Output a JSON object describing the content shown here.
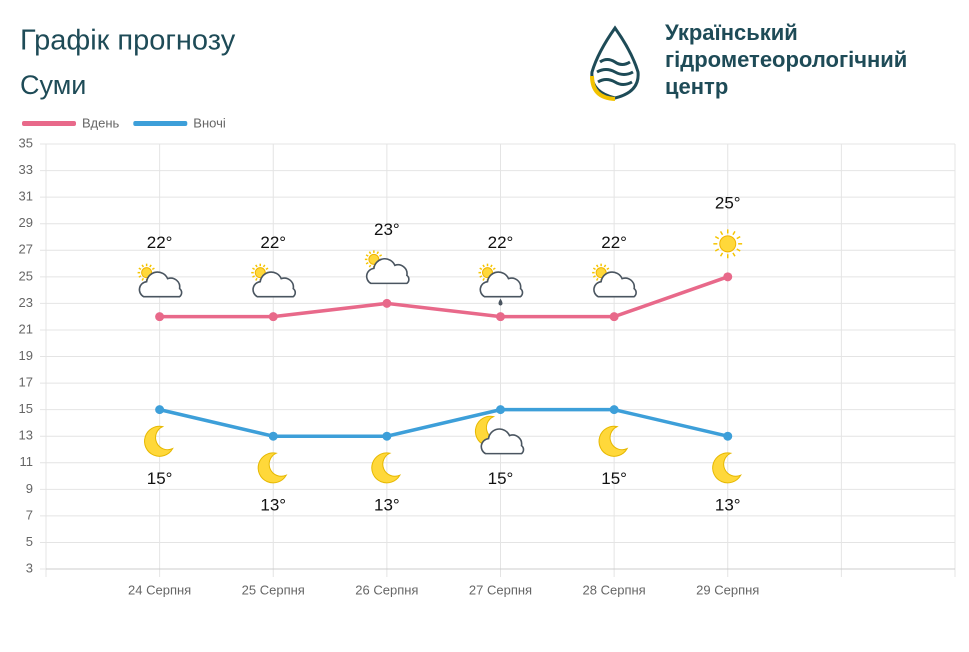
{
  "header": {
    "title": "Графік прогнозу",
    "city": "Суми",
    "logo_lines": [
      "Український",
      "гідрометеорологічний",
      "центр"
    ]
  },
  "chart_data": {
    "type": "line",
    "categories": [
      "24 Серпня",
      "25 Серпня",
      "26 Серпня",
      "27 Серпня",
      "28 Серпня",
      "29 Серпня"
    ],
    "series": [
      {
        "name": "Вдень",
        "color": "#e8698a",
        "values": [
          22,
          22,
          23,
          22,
          22,
          25
        ],
        "value_labels": [
          "22°",
          "22°",
          "23°",
          "22°",
          "22°",
          "25°"
        ]
      },
      {
        "name": "Вночі",
        "color": "#3d9fd9",
        "values": [
          15,
          13,
          13,
          15,
          15,
          13
        ],
        "value_labels": [
          "15°",
          "13°",
          "13°",
          "15°",
          "15°",
          "13°"
        ]
      }
    ],
    "ylim": [
      3,
      35
    ],
    "yticks": [
      3,
      5,
      7,
      9,
      11,
      13,
      15,
      17,
      19,
      21,
      23,
      25,
      27,
      29,
      31,
      33,
      35
    ],
    "grid": true,
    "legend": "top-left"
  }
}
